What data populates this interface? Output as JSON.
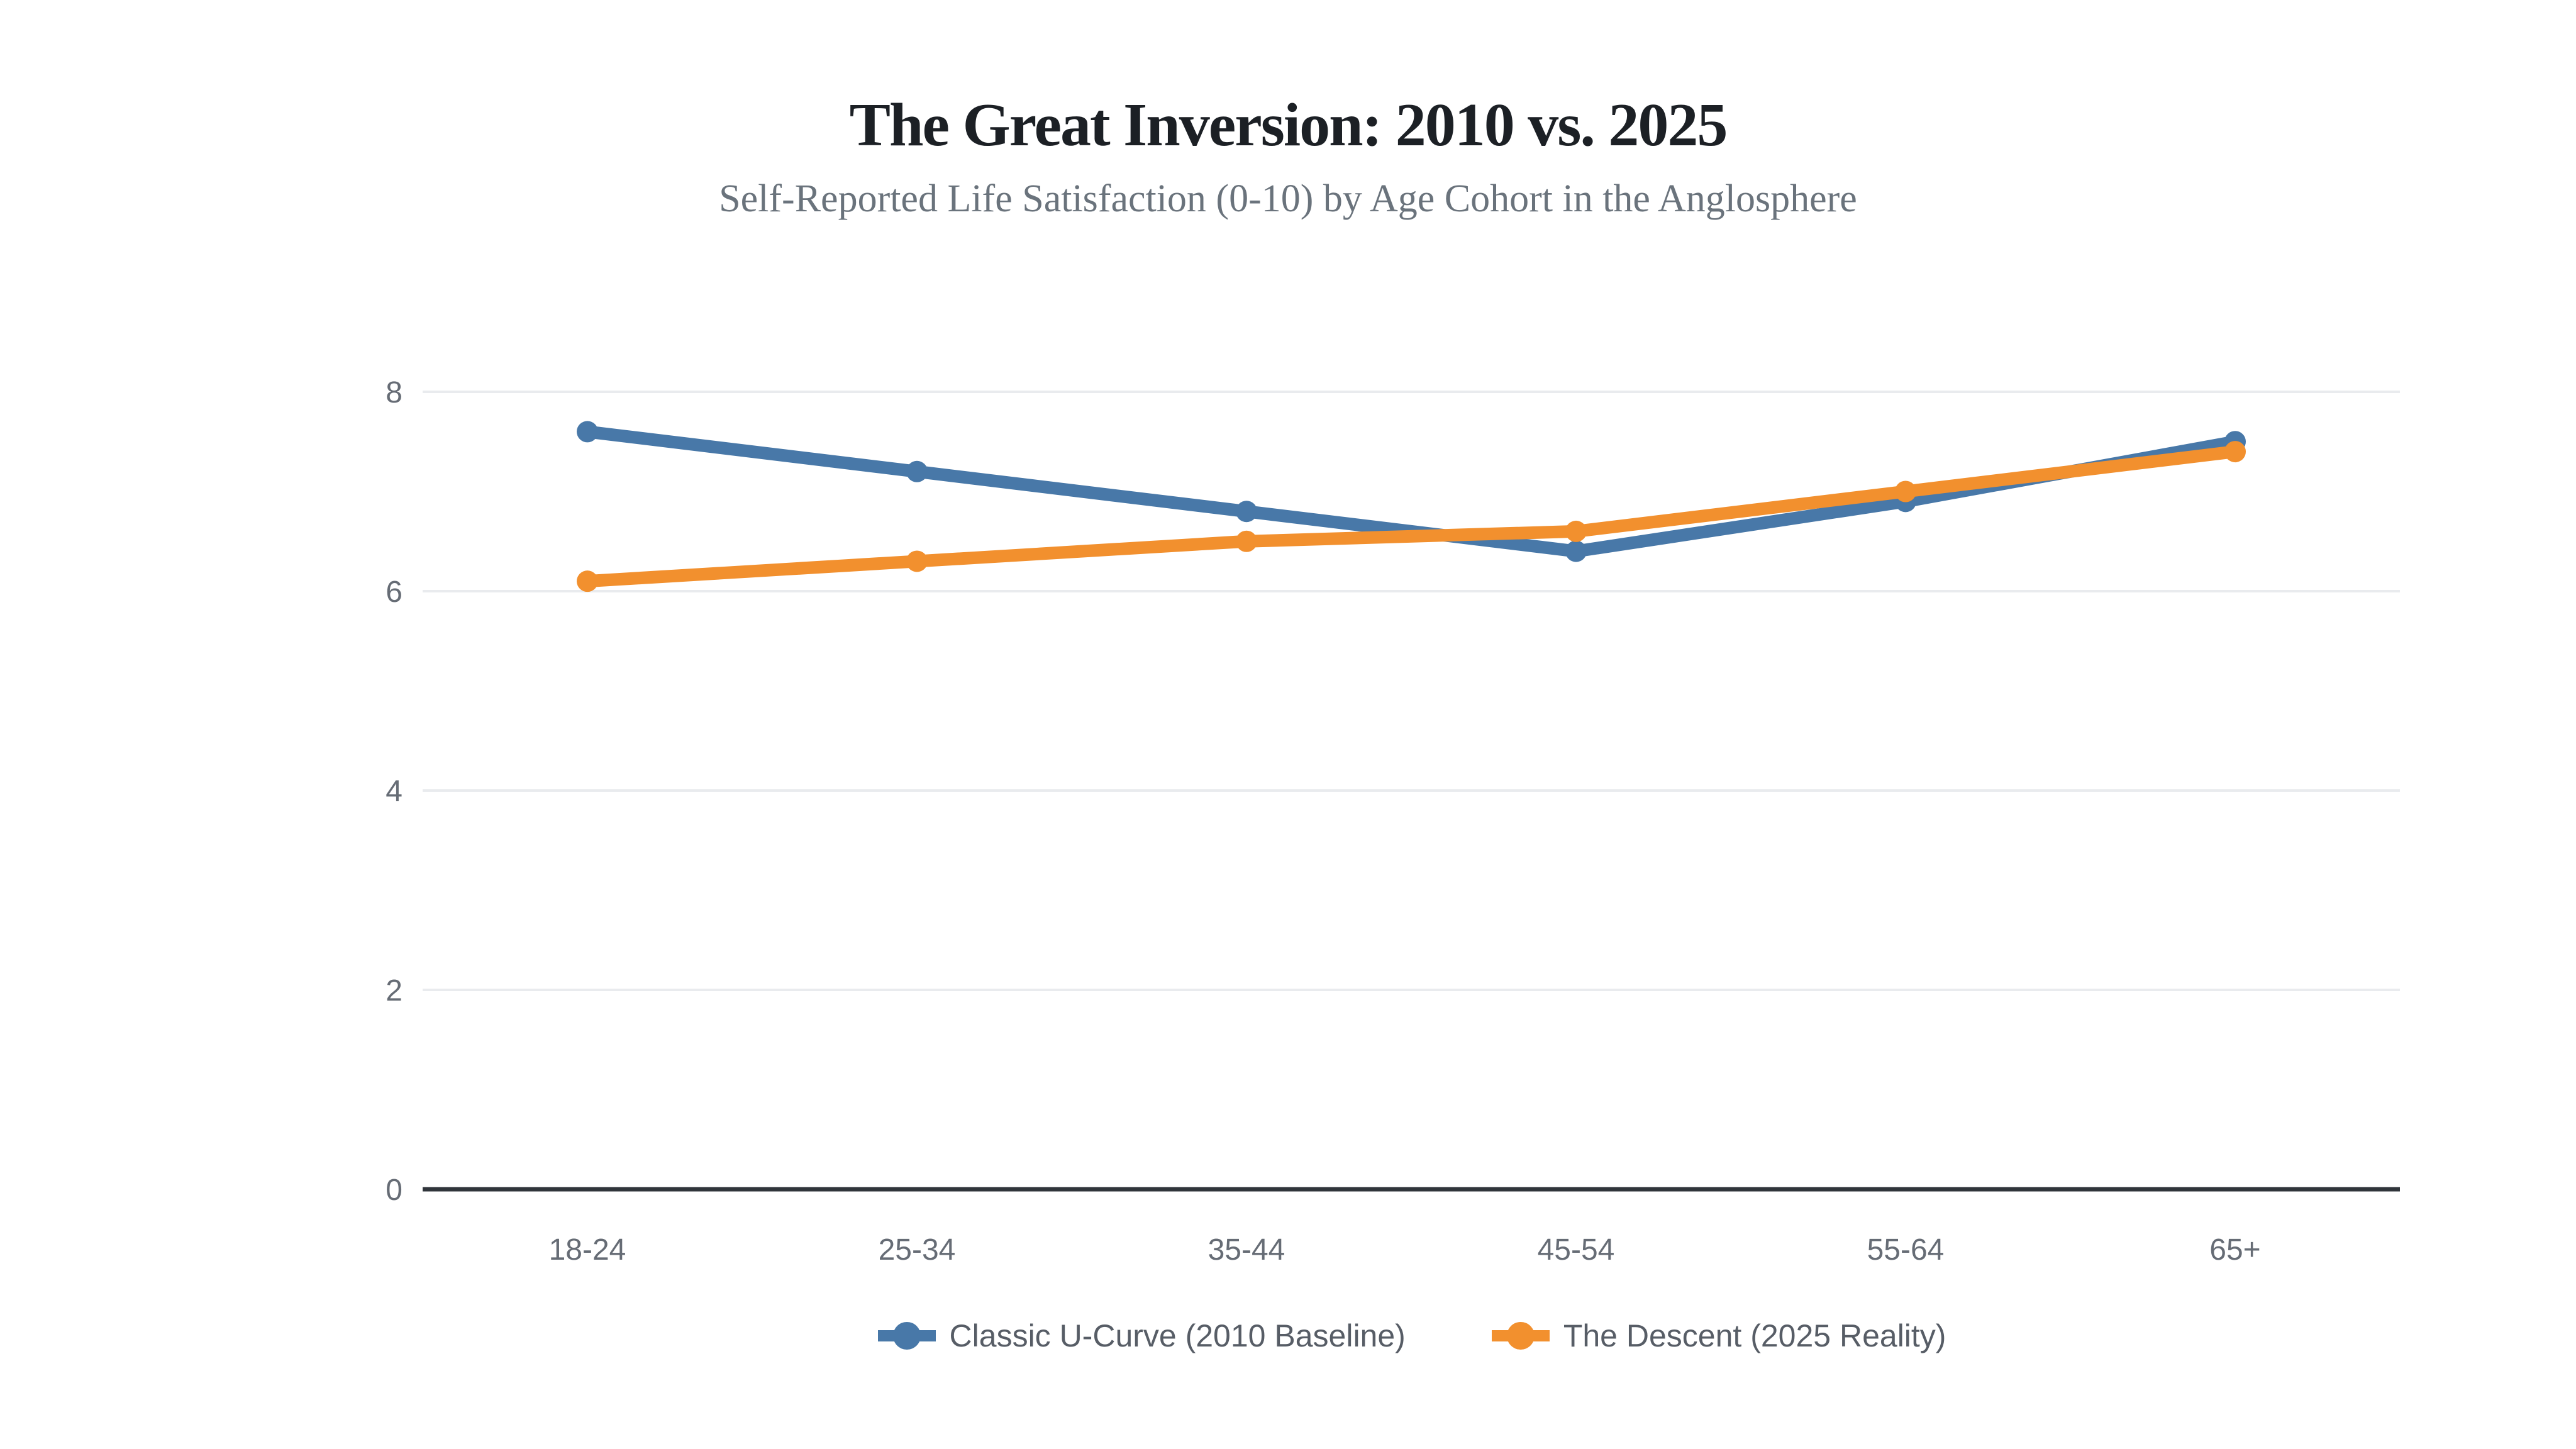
{
  "page": {
    "title": "The Great Inversion: 2010 vs. 2025",
    "subtitle": "Self-Reported Life Satisfaction (0-10) by Age Cohort in the Anglosphere"
  },
  "chart_data": {
    "type": "line",
    "title": "The Great Inversion: 2010 vs. 2025",
    "subtitle": "Self-Reported Life Satisfaction (0-10) by Age Cohort in the Anglosphere",
    "categories": [
      "18-24",
      "25-34",
      "35-44",
      "45-54",
      "55-64",
      "65+"
    ],
    "series": [
      {
        "name": "Classic U-Curve (2010 Baseline)",
        "color": "#4878A8",
        "values": [
          7.6,
          7.2,
          6.8,
          6.4,
          6.9,
          7.5
        ]
      },
      {
        "name": "The Descent (2025 Reality)",
        "color": "#F2902E",
        "values": [
          6.1,
          6.3,
          6.5,
          6.6,
          7.0,
          7.4
        ]
      }
    ],
    "ylim": [
      0,
      8
    ],
    "y_ticks": [
      0,
      2,
      4,
      6,
      8
    ],
    "grid": "horizontal",
    "legend_position": "bottom",
    "marker": "circle"
  },
  "colors": {
    "background": "#FFFFFF",
    "grid_line": "#E9EBEE",
    "axis_line": "#30353B",
    "tick_label": "#666C75",
    "legend_text": "#575D66",
    "title_text": "#1C2025",
    "subtitle_text": "#6A737C"
  }
}
